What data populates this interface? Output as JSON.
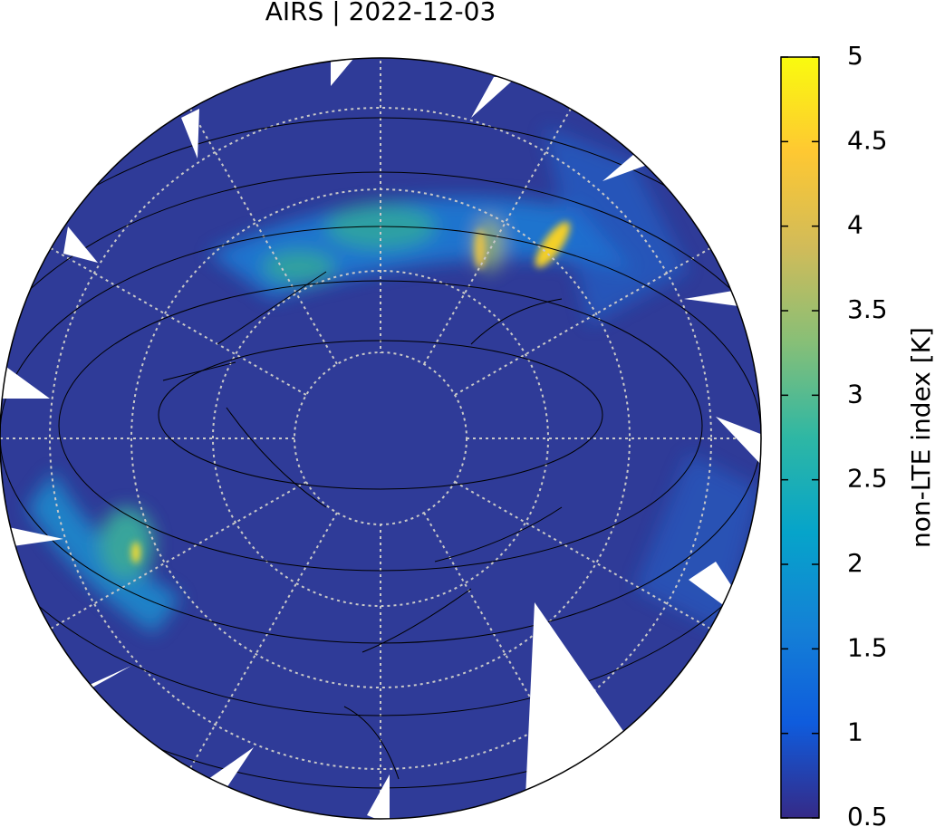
{
  "title": "AIRS | 2022-12-03",
  "colorbar": {
    "label": "non-LTE index [K]",
    "range": [
      0.5,
      5
    ],
    "ticks": [
      0.5,
      1,
      1.5,
      2,
      2.5,
      3,
      3.5,
      4,
      4.5,
      5
    ]
  }
}
